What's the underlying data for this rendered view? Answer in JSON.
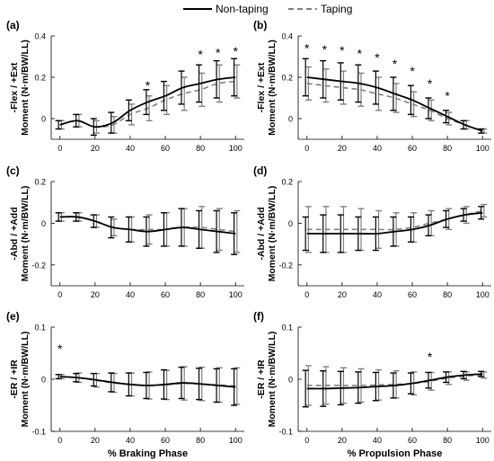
{
  "legend": {
    "items": [
      {
        "label": "Non-taping",
        "style": "solid",
        "color": "#000000"
      },
      {
        "label": "Taping",
        "style": "dashed",
        "color": "#808080"
      }
    ]
  },
  "colors": {
    "non_taping": "#000000",
    "taping": "#808080"
  },
  "chart_data": [
    {
      "id": "a",
      "panel_label": "(a)",
      "type": "line",
      "ylabel": [
        "-Flex / +Ext",
        "Moment (N·m/BW/LL)"
      ],
      "xlabel": "",
      "ylim": [
        -0.1,
        0.4
      ],
      "yticks": [
        0,
        0.2,
        0.4
      ],
      "ytick_labels": [
        "0",
        "0.2",
        "0.4"
      ],
      "xlim": [
        -5,
        105
      ],
      "xticks": [
        0,
        20,
        40,
        60,
        80,
        100
      ],
      "xtick_labels": [
        "0",
        "20",
        "40",
        "60",
        "80",
        "100"
      ],
      "x": [
        0,
        10,
        20,
        30,
        40,
        50,
        60,
        70,
        80,
        90,
        100
      ],
      "series": [
        {
          "name": "Non-taping",
          "values": [
            -0.03,
            -0.01,
            -0.04,
            -0.02,
            0.04,
            0.08,
            0.11,
            0.15,
            0.17,
            0.19,
            0.2
          ],
          "err": [
            0.02,
            0.03,
            0.04,
            0.05,
            0.05,
            0.06,
            0.07,
            0.08,
            0.09,
            0.09,
            0.09
          ]
        },
        {
          "name": "Taping",
          "values": [
            -0.03,
            -0.01,
            -0.04,
            -0.03,
            0.02,
            0.05,
            0.09,
            0.12,
            0.14,
            0.17,
            0.18
          ],
          "err": [
            0.02,
            0.03,
            0.03,
            0.04,
            0.05,
            0.06,
            0.07,
            0.08,
            0.08,
            0.09,
            0.08
          ]
        }
      ],
      "stars": [
        {
          "x": 50,
          "y": 0.165
        },
        {
          "x": 80,
          "y": 0.315
        },
        {
          "x": 90,
          "y": 0.325
        },
        {
          "x": 100,
          "y": 0.33
        }
      ]
    },
    {
      "id": "b",
      "panel_label": "(b)",
      "type": "line",
      "ylabel": [
        "-Flex / +Ext",
        "Moment (N·m/BW/LL)"
      ],
      "xlabel": "",
      "ylim": [
        -0.1,
        0.4
      ],
      "yticks": [
        0,
        0.2,
        0.4
      ],
      "ytick_labels": [
        "0",
        "0.2",
        "0.4"
      ],
      "xlim": [
        -5,
        105
      ],
      "xticks": [
        0,
        20,
        40,
        60,
        80,
        100
      ],
      "xtick_labels": [
        "0",
        "20",
        "40",
        "60",
        "80",
        "100"
      ],
      "x": [
        0,
        10,
        20,
        30,
        40,
        50,
        60,
        70,
        80,
        90,
        100
      ],
      "series": [
        {
          "name": "Non-taping",
          "values": [
            0.2,
            0.19,
            0.18,
            0.17,
            0.15,
            0.12,
            0.09,
            0.05,
            0.01,
            -0.03,
            -0.06
          ],
          "err": [
            0.09,
            0.09,
            0.09,
            0.09,
            0.08,
            0.08,
            0.07,
            0.05,
            0.03,
            0.02,
            0.01
          ]
        },
        {
          "name": "Taping",
          "values": [
            0.17,
            0.16,
            0.15,
            0.14,
            0.12,
            0.1,
            0.07,
            0.04,
            0.0,
            -0.03,
            -0.06
          ],
          "err": [
            0.08,
            0.08,
            0.08,
            0.08,
            0.08,
            0.07,
            0.06,
            0.05,
            0.03,
            0.02,
            0.01
          ]
        }
      ],
      "stars": [
        {
          "x": 0,
          "y": 0.345
        },
        {
          "x": 10,
          "y": 0.34
        },
        {
          "x": 20,
          "y": 0.335
        },
        {
          "x": 30,
          "y": 0.32
        },
        {
          "x": 40,
          "y": 0.3
        },
        {
          "x": 50,
          "y": 0.27
        },
        {
          "x": 60,
          "y": 0.235
        },
        {
          "x": 70,
          "y": 0.175
        },
        {
          "x": 80,
          "y": 0.115
        }
      ]
    },
    {
      "id": "c",
      "panel_label": "(c)",
      "type": "line",
      "ylabel": [
        "-Abd / +Add",
        "Moment (N·m/BW/LL)"
      ],
      "xlabel": "",
      "ylim": [
        -0.3,
        0.2
      ],
      "yticks": [
        -0.2,
        0,
        0.2
      ],
      "ytick_labels": [
        "-0.2",
        "0",
        "0.2"
      ],
      "xlim": [
        -5,
        105
      ],
      "xticks": [
        0,
        20,
        40,
        60,
        80,
        100
      ],
      "xtick_labels": [
        "0",
        "20",
        "40",
        "60",
        "80",
        "100"
      ],
      "x": [
        0,
        10,
        20,
        30,
        40,
        50,
        60,
        70,
        80,
        90,
        100
      ],
      "series": [
        {
          "name": "Non-taping",
          "values": [
            0.03,
            0.03,
            0.01,
            -0.02,
            -0.03,
            -0.04,
            -0.03,
            -0.02,
            -0.03,
            -0.04,
            -0.05
          ],
          "err": [
            0.02,
            0.02,
            0.03,
            0.05,
            0.06,
            0.07,
            0.08,
            0.09,
            0.09,
            0.1,
            0.1
          ]
        },
        {
          "name": "Taping",
          "values": [
            0.03,
            0.03,
            0.01,
            -0.02,
            -0.03,
            -0.03,
            -0.03,
            -0.02,
            -0.02,
            -0.03,
            -0.04
          ],
          "err": [
            0.02,
            0.02,
            0.03,
            0.04,
            0.06,
            0.07,
            0.08,
            0.09,
            0.1,
            0.1,
            0.1
          ]
        }
      ],
      "stars": []
    },
    {
      "id": "d",
      "panel_label": "(d)",
      "type": "line",
      "ylabel": [
        "-Abd / +Add",
        "Moment (N·m/BW/LL)"
      ],
      "xlabel": "",
      "ylim": [
        -0.3,
        0.2
      ],
      "yticks": [
        -0.2,
        0,
        0.2
      ],
      "ytick_labels": [
        "-0.2",
        "0",
        "0.2"
      ],
      "xlim": [
        -5,
        105
      ],
      "xticks": [
        0,
        20,
        40,
        60,
        80,
        100
      ],
      "xtick_labels": [
        "0",
        "20",
        "40",
        "60",
        "80",
        "100"
      ],
      "x": [
        0,
        10,
        20,
        30,
        40,
        50,
        60,
        70,
        80,
        90,
        100
      ],
      "series": [
        {
          "name": "Non-taping",
          "values": [
            -0.05,
            -0.05,
            -0.05,
            -0.05,
            -0.05,
            -0.04,
            -0.03,
            -0.01,
            0.02,
            0.04,
            0.05
          ],
          "err": [
            0.08,
            0.09,
            0.09,
            0.08,
            0.08,
            0.07,
            0.06,
            0.05,
            0.04,
            0.03,
            0.03
          ]
        },
        {
          "name": "Taping",
          "values": [
            -0.03,
            -0.03,
            -0.03,
            -0.03,
            -0.03,
            -0.03,
            -0.02,
            0.0,
            0.02,
            0.04,
            0.06
          ],
          "err": [
            0.11,
            0.11,
            0.11,
            0.1,
            0.09,
            0.08,
            0.07,
            0.06,
            0.05,
            0.04,
            0.03
          ]
        }
      ],
      "stars": []
    },
    {
      "id": "e",
      "panel_label": "(e)",
      "type": "line",
      "ylabel": [
        "-ER / +IR",
        "Moment (N·m/BW/LL)"
      ],
      "xlabel": "% Braking Phase",
      "ylim": [
        -0.1,
        0.1
      ],
      "yticks": [
        -0.1,
        0,
        0.1
      ],
      "ytick_labels": [
        "-0.1",
        "0",
        "0.1"
      ],
      "xlim": [
        -5,
        105
      ],
      "xticks": [
        0,
        20,
        40,
        60,
        80,
        100
      ],
      "xtick_labels": [
        "0",
        "20",
        "40",
        "60",
        "80",
        "100"
      ],
      "x": [
        0,
        10,
        20,
        30,
        40,
        50,
        60,
        70,
        80,
        90,
        100
      ],
      "series": [
        {
          "name": "Non-taping",
          "values": [
            0.005,
            0.003,
            -0.001,
            -0.006,
            -0.01,
            -0.012,
            -0.01,
            -0.007,
            -0.009,
            -0.012,
            -0.015
          ],
          "err": [
            0.004,
            0.008,
            0.012,
            0.018,
            0.022,
            0.025,
            0.028,
            0.03,
            0.03,
            0.032,
            0.035
          ]
        },
        {
          "name": "Taping",
          "values": [
            0.005,
            0.003,
            -0.002,
            -0.007,
            -0.01,
            -0.012,
            -0.011,
            -0.008,
            -0.009,
            -0.011,
            -0.013
          ],
          "err": [
            0.004,
            0.009,
            0.013,
            0.018,
            0.022,
            0.026,
            0.028,
            0.032,
            0.032,
            0.033,
            0.035
          ]
        }
      ],
      "stars": [
        {
          "x": 0,
          "y": 0.06
        }
      ]
    },
    {
      "id": "f",
      "panel_label": "(f)",
      "type": "line",
      "ylabel": [
        "-ER / +IR",
        "Moment (N·m/BW/LL)"
      ],
      "xlabel": "% Propulsion Phase",
      "ylim": [
        -0.1,
        0.1
      ],
      "yticks": [
        -0.1,
        0,
        0.1
      ],
      "ytick_labels": [
        "-0.1",
        "0",
        "0.1"
      ],
      "xlim": [
        -5,
        105
      ],
      "xticks": [
        0,
        20,
        40,
        60,
        80,
        100
      ],
      "xtick_labels": [
        "0",
        "20",
        "40",
        "60",
        "80",
        "100"
      ],
      "x": [
        0,
        10,
        20,
        30,
        40,
        50,
        60,
        70,
        80,
        90,
        100
      ],
      "series": [
        {
          "name": "Non-taping",
          "values": [
            -0.018,
            -0.018,
            -0.017,
            -0.016,
            -0.014,
            -0.012,
            -0.008,
            -0.002,
            0.004,
            0.008,
            0.01
          ],
          "err": [
            0.035,
            0.034,
            0.032,
            0.03,
            0.027,
            0.024,
            0.02,
            0.015,
            0.01,
            0.007,
            0.005
          ]
        },
        {
          "name": "Taping",
          "values": [
            -0.012,
            -0.012,
            -0.012,
            -0.012,
            -0.011,
            -0.01,
            -0.008,
            -0.004,
            0.002,
            0.006,
            0.008
          ],
          "err": [
            0.038,
            0.036,
            0.034,
            0.032,
            0.029,
            0.026,
            0.022,
            0.017,
            0.012,
            0.008,
            0.006
          ]
        }
      ],
      "stars": [
        {
          "x": 70,
          "y": 0.045
        }
      ]
    }
  ]
}
